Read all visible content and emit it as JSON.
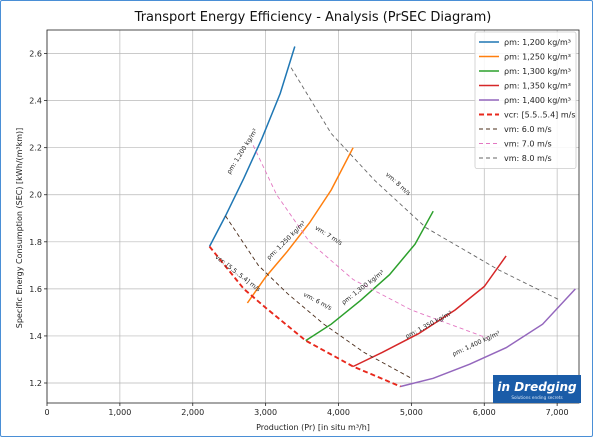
{
  "chart_data": {
    "type": "line",
    "title": "Transport Energy Efficiency - Analysis (PrSEC Diagram)",
    "xlabel": "Production (Pr) [in situ m³/h]",
    "ylabel": "Specific Energy Consumption (SEC) [kWh/(m³km)]",
    "xlim": [
      0,
      7300
    ],
    "ylim": [
      1.115,
      2.7
    ],
    "xticks": [
      0,
      1000,
      2000,
      3000,
      4000,
      5000,
      6000,
      7000
    ],
    "xtick_labels": [
      "0",
      "1,000",
      "2,000",
      "3,000",
      "4,000",
      "5,000",
      "6,000",
      "7,000"
    ],
    "yticks": [
      1.2,
      1.4,
      1.6,
      1.8,
      2.0,
      2.2,
      2.4,
      2.6
    ],
    "ytick_labels": [
      "1.2",
      "1.4",
      "1.6",
      "1.8",
      "2.0",
      "2.2",
      "2.4",
      "2.6"
    ],
    "grid": true,
    "legend_position": "top-right",
    "series": [
      {
        "name": "ρm: 1,200 kg/m³",
        "color": "#1f77b4",
        "style": "solid",
        "x": [
          2230,
          2450,
          2700,
          2950,
          3200,
          3400
        ],
        "y": [
          1.78,
          1.91,
          2.07,
          2.24,
          2.43,
          2.63
        ]
      },
      {
        "name": "ρm: 1,250 kg/m³",
        "color": "#ff7f0e",
        "style": "solid",
        "x": [
          2750,
          3000,
          3300,
          3600,
          3900,
          4200
        ],
        "y": [
          1.54,
          1.65,
          1.76,
          1.88,
          2.02,
          2.2
        ]
      },
      {
        "name": "ρm: 1,300 kg/m³",
        "color": "#2ca02c",
        "style": "solid",
        "x": [
          3550,
          3900,
          4300,
          4700,
          5050,
          5300
        ],
        "y": [
          1.38,
          1.45,
          1.55,
          1.66,
          1.79,
          1.93
        ]
      },
      {
        "name": "ρm: 1,350 kg/m³",
        "color": "#d62728",
        "style": "solid",
        "x": [
          4200,
          4600,
          5100,
          5600,
          6000,
          6300
        ],
        "y": [
          1.27,
          1.33,
          1.41,
          1.51,
          1.61,
          1.74
        ]
      },
      {
        "name": "ρm: 1,400 kg/m³",
        "color": "#9467bd",
        "style": "solid",
        "x": [
          4850,
          5300,
          5800,
          6300,
          6800,
          7250
        ],
        "y": [
          1.185,
          1.22,
          1.28,
          1.35,
          1.45,
          1.6
        ]
      },
      {
        "name": "vcr: [5.5..5.4] m/s",
        "color": "#e8281c",
        "style": "dashed-thick",
        "x": [
          2230,
          2700,
          3000,
          3550,
          4200,
          4850
        ],
        "y": [
          1.78,
          1.6,
          1.52,
          1.38,
          1.27,
          1.185
        ]
      },
      {
        "name": "vm: 6.0 m/s",
        "color": "#4a2c1a",
        "style": "dashed",
        "x": [
          2450,
          2900,
          3300,
          3800,
          4350,
          5000
        ],
        "y": [
          1.91,
          1.7,
          1.58,
          1.45,
          1.33,
          1.22
        ]
      },
      {
        "name": "vm: 7.0 m/s",
        "color": "#e377c2",
        "style": "dashed",
        "x": [
          2830,
          3150,
          3600,
          4200,
          5000,
          6050
        ],
        "y": [
          2.21,
          2.0,
          1.8,
          1.64,
          1.51,
          1.39
        ]
      },
      {
        "name": "vm: 8.0 m/s",
        "color": "#666666",
        "style": "dashed",
        "x": [
          3350,
          3900,
          4500,
          5200,
          6200,
          7050
        ],
        "y": [
          2.54,
          2.26,
          2.06,
          1.86,
          1.68,
          1.55
        ]
      }
    ],
    "annotations": [
      {
        "text": "ρm: 1,200 kg/m³",
        "x": 2700,
        "y": 2.18,
        "angle": -58
      },
      {
        "text": "ρm: 1,250 kg/m³",
        "x": 3300,
        "y": 1.8,
        "angle": -45
      },
      {
        "text": "ρm: 1,300 kg/m³",
        "x": 4350,
        "y": 1.6,
        "angle": -38
      },
      {
        "text": "ρm: 1,350 kg/m³",
        "x": 5250,
        "y": 1.44,
        "angle": -28
      },
      {
        "text": "ρm: 1,400 kg/m³",
        "x": 5900,
        "y": 1.36,
        "angle": -25
      },
      {
        "text": "vcr: [5.5..5.4] m/s",
        "x": 2600,
        "y": 1.66,
        "angle": 38
      },
      {
        "text": "vm: 6 m/s",
        "x": 3700,
        "y": 1.54,
        "angle": 28
      },
      {
        "text": "vm: 7 m/s",
        "x": 3850,
        "y": 1.82,
        "angle": 32
      },
      {
        "text": "vm: 8 m/s",
        "x": 4800,
        "y": 2.04,
        "angle": 42
      }
    ]
  },
  "logo": {
    "brand": "in Dredging",
    "tagline": "Solutions ending secrets"
  }
}
